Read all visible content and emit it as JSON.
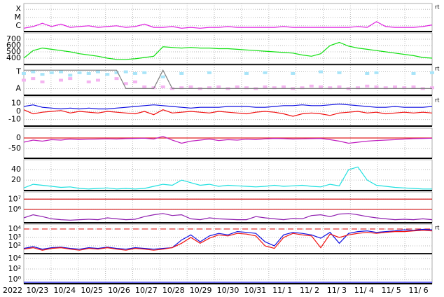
{
  "chart_data": [
    {
      "type": "line",
      "log": false,
      "note": "rt",
      "ylim": [
        0.3,
        3.7
      ],
      "yticks": [
        {
          "value": 3,
          "label": "X"
        },
        {
          "value": 2,
          "label": "M"
        },
        {
          "value": 1,
          "label": "C"
        }
      ],
      "series": [
        {
          "color": "#e020e0",
          "values": [
            0.7,
            0.9,
            1.3,
            0.9,
            1.2,
            0.8,
            0.9,
            1.0,
            0.8,
            0.9,
            1.0,
            0.8,
            0.9,
            1.2,
            0.8,
            0.8,
            0.9,
            0.7,
            0.8,
            0.7,
            0.8,
            0.8,
            0.9,
            0.8,
            0.8,
            0.8,
            0.8,
            0.8,
            0.9,
            0.8,
            0.8,
            0.8,
            0.8,
            0.8,
            0.8,
            0.8,
            0.9,
            0.8,
            1.5,
            0.9,
            0.8,
            0.8,
            0.8,
            0.9,
            1.1
          ]
        }
      ]
    },
    {
      "type": "line",
      "log": false,
      "ylim": [
        300,
        800
      ],
      "yticks": [
        700,
        600,
        500,
        400
      ],
      "series": [
        {
          "color": "#10e010",
          "values": [
            400,
            520,
            560,
            540,
            520,
            500,
            470,
            450,
            430,
            400,
            380,
            380,
            390,
            410,
            430,
            580,
            570,
            560,
            570,
            560,
            560,
            550,
            550,
            540,
            530,
            520,
            510,
            500,
            490,
            480,
            450,
            430,
            470,
            600,
            650,
            590,
            560,
            540,
            520,
            500,
            480,
            460,
            440,
            410,
            400
          ]
        }
      ]
    },
    {
      "type": "scatter",
      "log": false,
      "note": "rt",
      "ylim": [
        -0.4,
        1.4
      ],
      "yticks": [
        {
          "value": 1,
          "label": "T"
        },
        {
          "value": 0,
          "label": "A"
        }
      ],
      "series": [
        {
          "color": "#a8e4f8",
          "values": [
            0.9,
            1.0,
            0.85,
            0.95,
            1.0,
            0.8,
            0.95,
            0.9,
            1.0,
            0.85,
            0.95,
            1.0,
            0.9,
            0.95,
            null,
            0.7,
            null,
            0.9,
            null,
            null,
            0.95,
            null,
            null,
            null,
            0.9,
            null,
            0.95,
            null,
            null,
            0.9,
            null,
            null,
            1.0,
            null,
            0.95,
            null,
            null,
            0.9,
            0.95,
            null,
            null,
            null,
            0.9,
            null,
            0.95
          ]
        },
        {
          "color": "#f4b4f0",
          "values": [
            0.5,
            0.6,
            0.4,
            null,
            0.5,
            0.6,
            null,
            0.4,
            0.5,
            null,
            0.6,
            0.3,
            0.4,
            0.1,
            0.05,
            0.1,
            0.0,
            0.05,
            0.1,
            0.0,
            0.05,
            0.1,
            0.0,
            0.1,
            0.05,
            0.0,
            0.1,
            0.05,
            0.1,
            0.0,
            0.05,
            0.15,
            0.1,
            0.05,
            0.1,
            0.0,
            0.05,
            0.15,
            0.1,
            0.05,
            0.1,
            0.05,
            0.1,
            0.0,
            0.05
          ]
        },
        {
          "color": "#808080",
          "line": true,
          "values": [
            1.1,
            1.1,
            1.1,
            1.1,
            1.1,
            1.1,
            1.1,
            1.1,
            1.1,
            1.1,
            1.1,
            0.0,
            0.0,
            0.0,
            0.0,
            1.1,
            0.0,
            0.0,
            0.0,
            0.0,
            0.0,
            0.0,
            0.0,
            0.0,
            0.0,
            0.0,
            0.0,
            0.0,
            0.0,
            0.0,
            0.0,
            0.0,
            0.0,
            0.0,
            0.0,
            0.0,
            0.0,
            0.0,
            0.0,
            0.0,
            0.0,
            0.0,
            0.0,
            0.0,
            0.0
          ]
        }
      ]
    },
    {
      "type": "line",
      "log": false,
      "note": "rt",
      "ylim": [
        -18,
        18
      ],
      "yticks": [
        10,
        0,
        -10
      ],
      "series": [
        {
          "color": "#1010e0",
          "values": [
            6,
            8,
            5,
            4,
            3,
            4,
            3,
            4,
            3,
            3,
            4,
            5,
            6,
            7,
            8,
            7,
            6,
            5,
            4,
            5,
            5,
            5,
            6,
            6,
            6,
            5,
            5,
            6,
            7,
            7,
            8,
            7,
            7,
            8,
            9,
            8,
            7,
            6,
            5,
            5,
            6,
            5,
            5,
            5,
            6
          ]
        },
        {
          "color": "#f01010",
          "values": [
            2,
            -3,
            -1,
            0,
            1,
            -2,
            0,
            -1,
            -2,
            0,
            -1,
            -2,
            -3,
            0,
            -4,
            2,
            -2,
            -1,
            0,
            -1,
            -2,
            0,
            -1,
            -2,
            -3,
            -1,
            0,
            -1,
            -3,
            -6,
            -3,
            -2,
            -3,
            -5,
            -2,
            -1,
            0,
            -2,
            -1,
            -3,
            -2,
            -1,
            -2,
            -1,
            -2
          ]
        }
      ]
    },
    {
      "type": "line",
      "log": false,
      "ylim": [
        -97,
        47
      ],
      "yticks": [
        0,
        -50
      ],
      "hlines": [
        {
          "value": 0,
          "color": "#e02020",
          "dashed": false
        }
      ],
      "series": [
        {
          "color": "#c020c0",
          "values": [
            -20,
            -10,
            -15,
            -8,
            -10,
            -5,
            -8,
            -6,
            -5,
            -4,
            -5,
            -3,
            -2,
            -1,
            -5,
            8,
            -10,
            -25,
            -15,
            -10,
            -5,
            -12,
            -8,
            -10,
            -6,
            -8,
            -4,
            -2,
            -3,
            -5,
            -4,
            -3,
            -2,
            -8,
            -15,
            -25,
            -20,
            -15,
            -12,
            -10,
            -8,
            -5,
            -3,
            -2,
            -1
          ]
        }
      ]
    },
    {
      "type": "line",
      "log": false,
      "ylim": [
        0,
        59
      ],
      "yticks": [
        40,
        20
      ],
      "series": [
        {
          "color": "#20e0e0",
          "values": [
            5,
            12,
            10,
            8,
            6,
            7,
            4,
            3,
            4,
            5,
            3,
            4,
            3,
            4,
            8,
            12,
            10,
            20,
            15,
            10,
            12,
            8,
            10,
            9,
            8,
            7,
            8,
            10,
            8,
            9,
            10,
            8,
            7,
            12,
            9,
            40,
            45,
            20,
            10,
            8,
            6,
            5,
            4,
            3,
            3
          ]
        }
      ]
    },
    {
      "type": "line",
      "log": true,
      "ylim": [
        50000,
        50000000
      ],
      "yticks": [
        {
          "value": 10000000,
          "label": "10⁷"
        },
        {
          "value": 1000000,
          "label": "10⁶"
        }
      ],
      "hlines": [
        {
          "value": 10000000,
          "color": "#d01010",
          "dashed": false
        },
        {
          "value": 1000000,
          "color": "#d01010",
          "dashed": false
        }
      ],
      "series": [
        {
          "color": "#9020b0",
          "values": [
            150000,
            300000,
            200000,
            120000,
            100000,
            90000,
            100000,
            110000,
            100000,
            150000,
            120000,
            100000,
            110000,
            200000,
            300000,
            400000,
            250000,
            300000,
            120000,
            100000,
            150000,
            120000,
            110000,
            100000,
            100000,
            200000,
            150000,
            120000,
            100000,
            130000,
            120000,
            250000,
            300000,
            200000,
            350000,
            400000,
            300000,
            200000,
            150000,
            120000,
            100000,
            110000,
            100000,
            120000,
            100000
          ]
        }
      ]
    },
    {
      "type": "line",
      "log": true,
      "note": "rt",
      "ylim": [
        12,
        38000
      ],
      "yticks": [
        {
          "value": 10000,
          "label": "10⁴"
        },
        {
          "value": 1000,
          "label": "10³"
        },
        {
          "value": 100,
          "label": "10²"
        }
      ],
      "hlines": [
        {
          "value": 10000,
          "color": "#e02020",
          "dashed": true
        }
      ],
      "series": [
        {
          "color": "#1010e0",
          "values": [
            50,
            80,
            40,
            60,
            70,
            50,
            40,
            60,
            50,
            70,
            50,
            40,
            60,
            50,
            40,
            50,
            60,
            500,
            2000,
            300,
            1500,
            3000,
            2000,
            5000,
            4000,
            3000,
            300,
            100,
            2000,
            4000,
            3000,
            2000,
            800,
            4000,
            200,
            3000,
            5000,
            6000,
            4000,
            5000,
            6000,
            8000,
            7000,
            9000,
            8000
          ]
        },
        {
          "color": "#f01010",
          "values": [
            40,
            60,
            30,
            50,
            60,
            40,
            30,
            50,
            40,
            60,
            40,
            30,
            50,
            40,
            30,
            40,
            60,
            200,
            1000,
            200,
            800,
            2000,
            1500,
            3000,
            2500,
            1500,
            100,
            50,
            1000,
            3000,
            2000,
            1500,
            60,
            2500,
            1000,
            2000,
            3000,
            4000,
            3000,
            4000,
            5000,
            5000,
            6000,
            7000,
            6000
          ]
        }
      ]
    },
    {
      "type": "line",
      "log": true,
      "ylim": [
        0.16,
        63000
      ],
      "yticks": [
        {
          "value": 10000,
          "label": "10⁴"
        },
        {
          "value": 100,
          "label": "10²"
        },
        {
          "value": 1,
          "label": "10⁰"
        }
      ],
      "series": [
        {
          "color": "#1010e0",
          "values": [
            0.3,
            0.3
          ]
        }
      ]
    }
  ],
  "time_axis": {
    "year": "2022",
    "days": [
      "10/23",
      "10/24",
      "10/25",
      "10/26",
      "10/27",
      "10/28",
      "10/29",
      "10/30",
      "10/31",
      "11/ 1",
      "11/ 2",
      "11/ 3",
      "11/ 4",
      "11/ 5",
      "11/ 6"
    ]
  }
}
